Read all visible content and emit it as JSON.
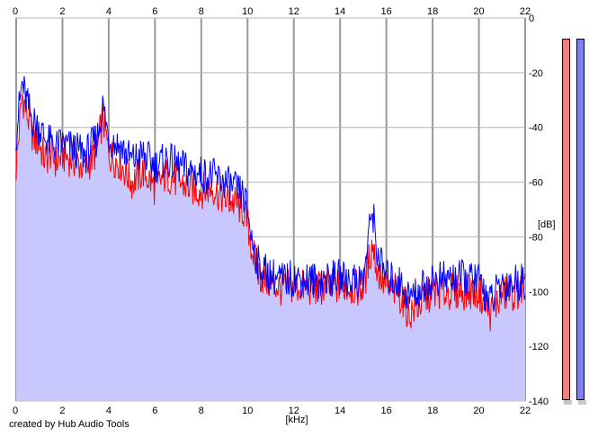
{
  "chart_data": {
    "type": "area",
    "xlabel": "[kHz]",
    "ylabel": "[dB]",
    "xlim": [
      0,
      22
    ],
    "ylim": [
      -140,
      0
    ],
    "x_ticks": [
      "0",
      "2",
      "4",
      "6",
      "8",
      "10",
      "12",
      "14",
      "16",
      "18",
      "20",
      "22"
    ],
    "y_ticks": [
      "0",
      "-20",
      "-40",
      "-60",
      "-80",
      "-100",
      "-120",
      "-140"
    ],
    "grid": true,
    "series": [
      {
        "color": "#ff0000",
        "filled": true,
        "fill_color": "#c8c8ff",
        "x": [
          0,
          0.25,
          0.5,
          0.75,
          1,
          1.25,
          1.5,
          1.75,
          2,
          2.5,
          3,
          3.5,
          3.75,
          4,
          4.5,
          5,
          5.5,
          6,
          6.5,
          7,
          7.5,
          8,
          8.5,
          9,
          9.5,
          9.8,
          10,
          10.2,
          10.5,
          11,
          11.5,
          12,
          13,
          14,
          15,
          15.4,
          15.6,
          16,
          16.5,
          17,
          18,
          19,
          20,
          20.5,
          21,
          22
        ],
        "values": [
          -55,
          -28,
          -36,
          -44,
          -46,
          -52,
          -49,
          -53,
          -50,
          -52,
          -55,
          -48,
          -36,
          -50,
          -53,
          -60,
          -56,
          -62,
          -57,
          -60,
          -62,
          -63,
          -62,
          -66,
          -68,
          -70,
          -75,
          -85,
          -94,
          -97,
          -99,
          -98,
          -99,
          -98,
          -99,
          -82,
          -92,
          -99,
          -100,
          -108,
          -100,
          -100,
          -100,
          -108,
          -101,
          -100
        ]
      },
      {
        "color": "#0000ff",
        "filled": false,
        "x": [
          0,
          0.25,
          0.5,
          0.75,
          1,
          1.25,
          1.5,
          1.75,
          2,
          2.5,
          3,
          3.5,
          3.75,
          4,
          4.5,
          5,
          5.5,
          6,
          6.5,
          7,
          7.5,
          8,
          8.5,
          9,
          9.5,
          9.8,
          10,
          10.2,
          10.5,
          11,
          11.5,
          12,
          13,
          14,
          15,
          15.4,
          15.6,
          16,
          16.5,
          17,
          18,
          19,
          20,
          20.5,
          21,
          22
        ],
        "values": [
          -42,
          -24,
          -32,
          -38,
          -40,
          -44,
          -46,
          -47,
          -46,
          -48,
          -50,
          -44,
          -32,
          -44,
          -47,
          -52,
          -50,
          -54,
          -52,
          -54,
          -56,
          -57,
          -58,
          -60,
          -63,
          -65,
          -70,
          -82,
          -91,
          -94,
          -96,
          -95,
          -96,
          -95,
          -96,
          -69,
          -86,
          -95,
          -96,
          -102,
          -96,
          -95,
          -96,
          -104,
          -97,
          -96
        ]
      }
    ]
  },
  "meters": [
    {
      "name": "left-channel",
      "color": "#f08080"
    },
    {
      "name": "right-channel",
      "color": "#8080f0"
    }
  ],
  "credit": "created by Hub Audio Tools"
}
